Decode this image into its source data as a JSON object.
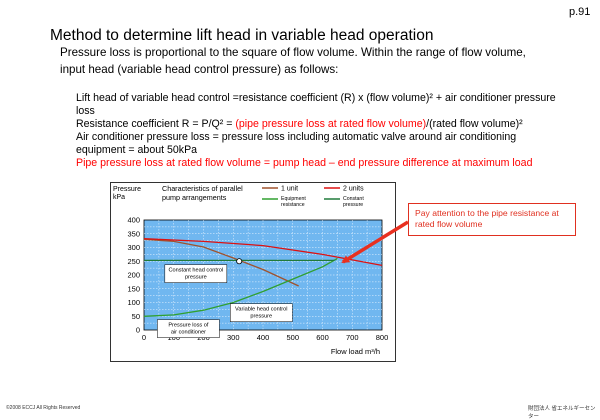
{
  "page_number": "p.91",
  "title": "Method to determine lift head in variable head operation",
  "intro": [
    "Pressure loss is proportional to the square of flow volume. Within the range of flow volume,",
    "input head (variable head control pressure) as follows:"
  ],
  "body_lines": [
    {
      "segments": [
        {
          "text": "Lift head of variable head control =resistance coefficient (R) x (flow volume)² + air conditioner pressure",
          "red": false
        }
      ]
    },
    {
      "segments": [
        {
          "text": "loss",
          "red": false
        }
      ]
    },
    {
      "segments": [
        {
          "text": "Resistance coefficient R = P/Q² = ",
          "red": false
        },
        {
          "text": "(pipe pressure loss at rated flow volume)",
          "red": true
        },
        {
          "text": "/(rated flow volume)²",
          "red": false
        }
      ]
    },
    {
      "segments": [
        {
          "text": "Air conditioner pressure loss = pressure loss including automatic valve around air conditioning",
          "red": false
        }
      ]
    },
    {
      "segments": [
        {
          "text": "equipment = about 50kPa",
          "red": false
        }
      ]
    },
    {
      "segments": [
        {
          "text": "Pipe pressure loss at rated flow volume = pump head – end pressure difference at maximum load",
          "red": true
        }
      ]
    }
  ],
  "callout": "Pay attention to the pipe resistance at rated flow volume",
  "footer": {
    "copyright": "©2008 ECCJ All Rights Reserved",
    "org": "財団法人 省エネルギーセンター"
  },
  "chart_data": {
    "type": "line",
    "title": "Characteristics of parallel pump arrangements",
    "ylabel_lines": [
      "Pressure",
      "kPa"
    ],
    "xlabel": "Flow load m³/h",
    "xlim": [
      0,
      800
    ],
    "ylim": [
      0,
      400
    ],
    "x_ticks": [
      "0",
      "100",
      "200",
      "300",
      "400",
      "500",
      "600",
      "700",
      "800"
    ],
    "y_ticks": [
      "0",
      "50",
      "100",
      "150",
      "200",
      "250",
      "300",
      "350",
      "400"
    ],
    "grid": true,
    "legend_position": "top",
    "series": [
      {
        "name": "1 unit",
        "color": "#a0522d",
        "points": [
          [
            0,
            330
          ],
          [
            100,
            322
          ],
          [
            200,
            302
          ],
          [
            300,
            262
          ],
          [
            400,
            220
          ],
          [
            520,
            160
          ]
        ]
      },
      {
        "name": "2 units",
        "color": "#dd1111",
        "points": [
          [
            0,
            332
          ],
          [
            200,
            322
          ],
          [
            400,
            307
          ],
          [
            600,
            275
          ],
          [
            700,
            255
          ],
          [
            800,
            235
          ]
        ]
      },
      {
        "name": "Equipment resistance",
        "color": "#30a030",
        "points": [
          [
            0,
            50
          ],
          [
            100,
            55
          ],
          [
            200,
            72
          ],
          [
            300,
            100
          ],
          [
            400,
            140
          ],
          [
            500,
            185
          ],
          [
            600,
            230
          ],
          [
            650,
            260
          ]
        ]
      },
      {
        "name": "Constant pressure",
        "color": "#207a3a",
        "points": [
          [
            0,
            253
          ],
          [
            640,
            253
          ]
        ]
      }
    ],
    "annotations": [
      {
        "text_lines": [
          "Constant head control",
          "pressure"
        ],
        "x": 70,
        "y": 205
      },
      {
        "text_lines": [
          "Variable head control",
          "pressure"
        ],
        "x": 290,
        "y": 63
      },
      {
        "text_lines": [
          "Pressure loss of",
          "air conditioner"
        ],
        "x": 45,
        "y": 5
      }
    ],
    "markers": [
      {
        "x": 320,
        "y": 250,
        "style": "open-circle"
      }
    ]
  }
}
